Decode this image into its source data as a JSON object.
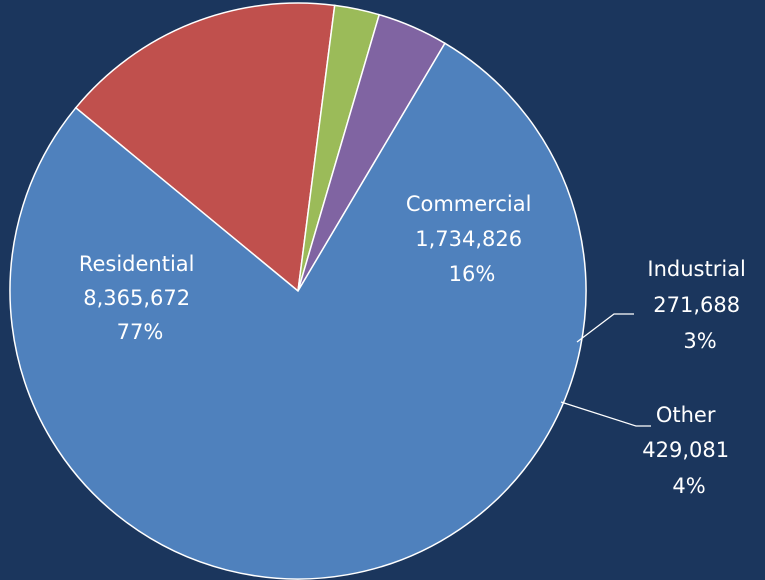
{
  "chart_data": {
    "type": "pie",
    "title": "",
    "slices": [
      {
        "name": "Residential",
        "value": 8365672,
        "value_label": "8,365,672",
        "percent_label": "77%",
        "color": "#4f81bd"
      },
      {
        "name": "Commercial",
        "value": 1734826,
        "value_label": "1,734,826",
        "percent_label": "16%",
        "color": "#c0504d"
      },
      {
        "name": "Industrial",
        "value": 271688,
        "value_label": "271,688",
        "percent_label": "3%",
        "color": "#9bbb59"
      },
      {
        "name": "Other",
        "value": 429081,
        "value_label": "429,081",
        "percent_label": "4%",
        "color": "#8064a2"
      }
    ]
  },
  "colors": {
    "background": "#1b365d",
    "slice_border": "#ffffff",
    "label_text": "#ffffff",
    "leader_line": "#ffffff"
  }
}
